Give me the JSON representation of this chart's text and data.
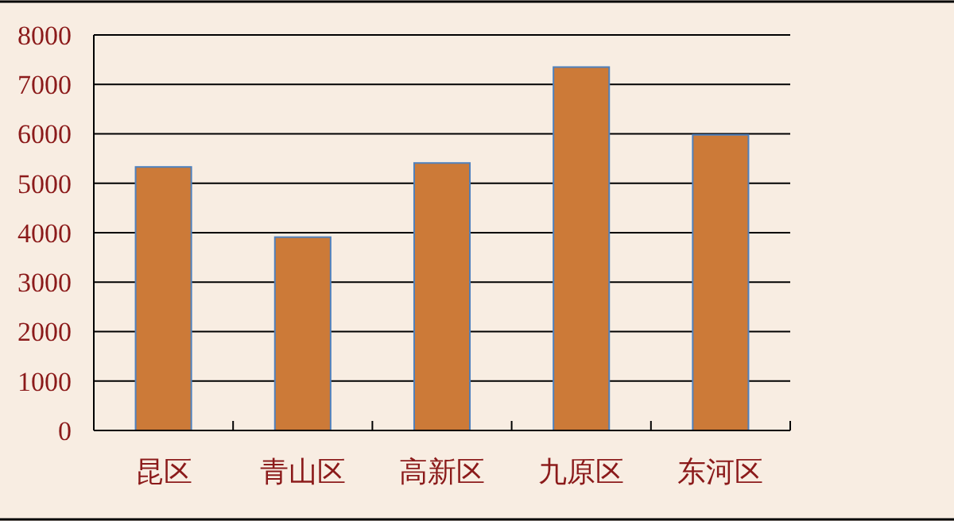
{
  "chart_data": {
    "type": "bar",
    "categories": [
      "昆区",
      "青山区",
      "高新区",
      "九原区",
      "东河区"
    ],
    "values": [
      5330,
      3910,
      5410,
      7350,
      5980
    ],
    "color": "#cc7a38",
    "ylim": [
      0,
      8000
    ],
    "yticks": [
      0,
      1000,
      2000,
      3000,
      4000,
      5000,
      6000,
      7000,
      8000
    ],
    "grid": "y"
  }
}
